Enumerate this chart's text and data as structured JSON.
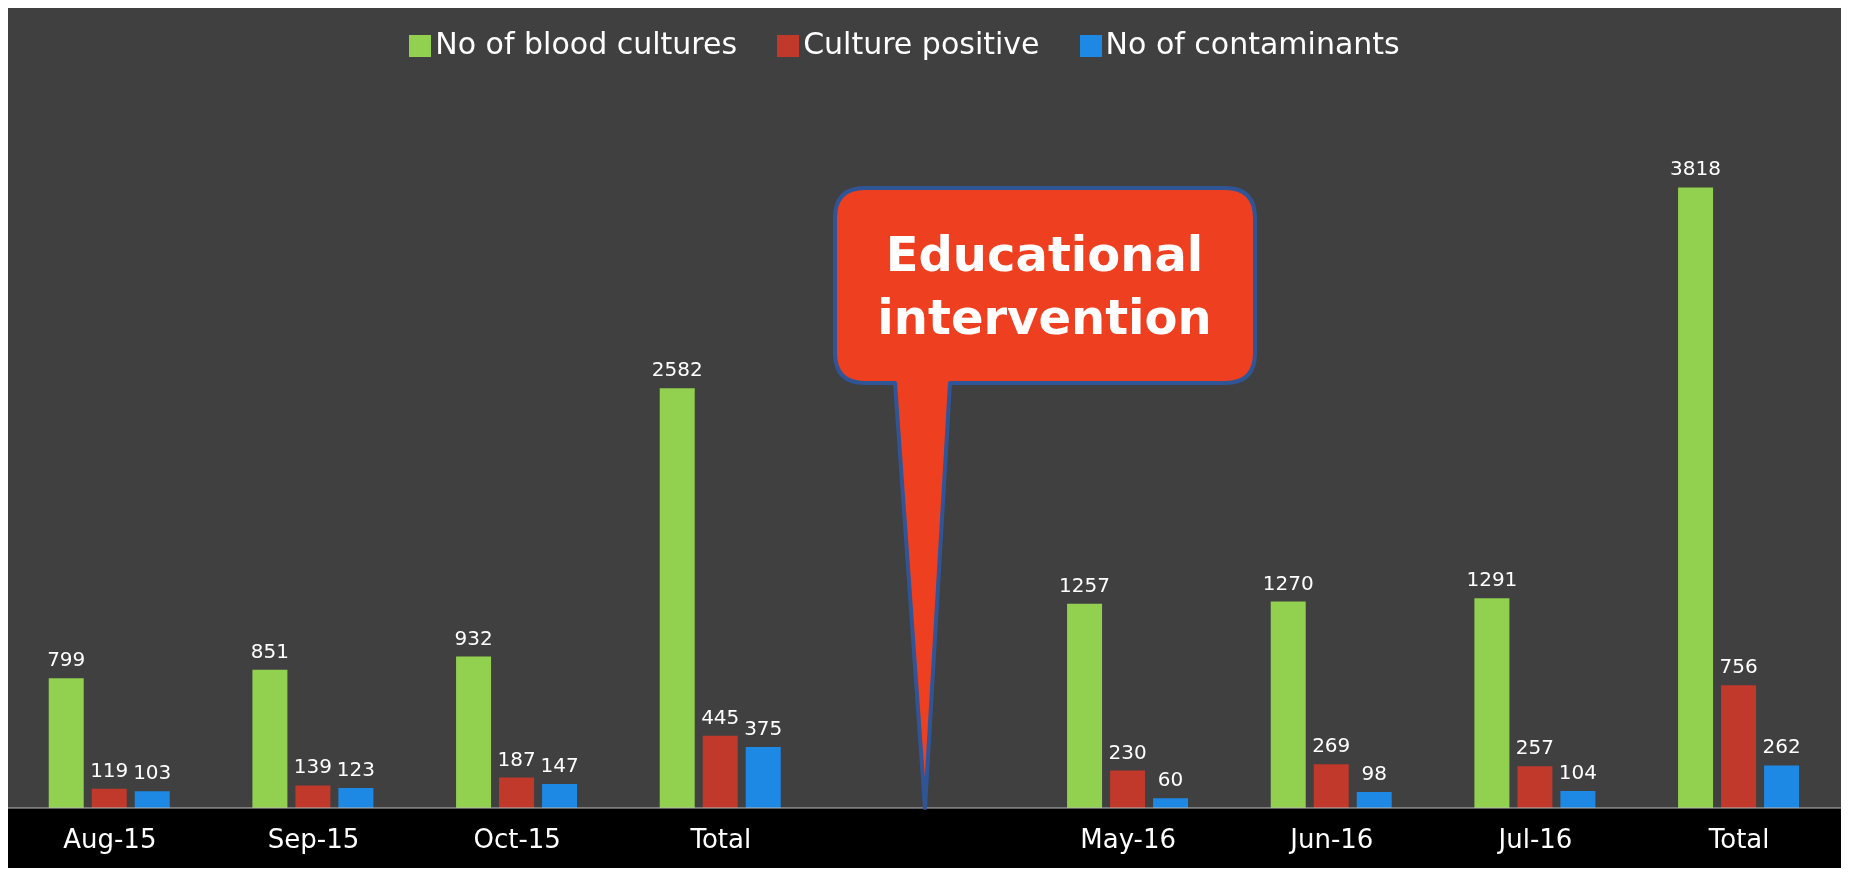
{
  "chart_data": {
    "type": "bar",
    "categories": [
      "Aug-15",
      "Sep-15",
      "Oct-15",
      "Total",
      null,
      "May-16",
      "Jun-16",
      "Jul-16",
      "Total"
    ],
    "series": [
      {
        "name": "No of  blood cultures",
        "color": "#92d050",
        "values": [
          799,
          851,
          932,
          2582,
          null,
          1257,
          1270,
          1291,
          3818
        ]
      },
      {
        "name": "Culture positive",
        "color": "#c0392b",
        "values": [
          119,
          139,
          187,
          445,
          null,
          230,
          269,
          257,
          756
        ]
      },
      {
        "name": "No of contaminants",
        "color": "#1e88e5",
        "values": [
          103,
          123,
          147,
          375,
          null,
          60,
          98,
          104,
          262
        ]
      }
    ],
    "data_labels": true,
    "legend": "top",
    "grid": false,
    "annotations": [
      "Educational intervention"
    ]
  }
}
